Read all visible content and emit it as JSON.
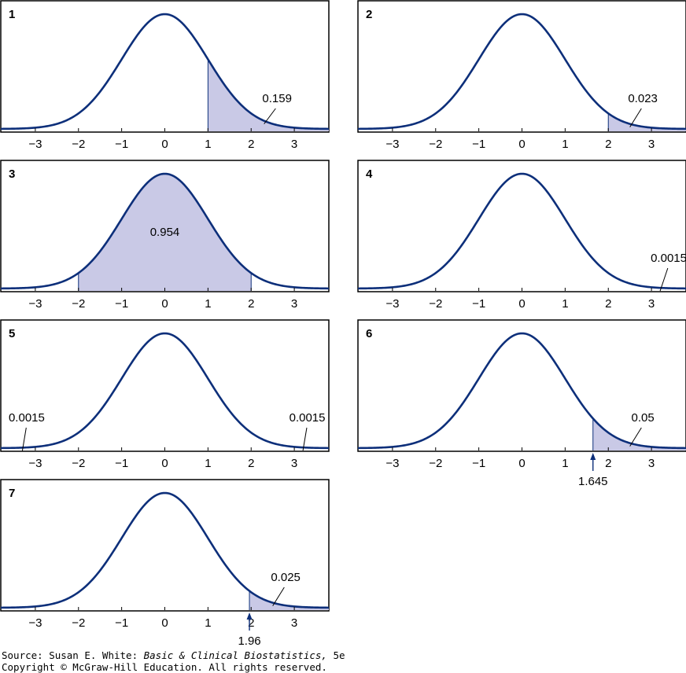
{
  "colors": {
    "curve": "#0d2f7a",
    "fill": "#c9c9e6",
    "axis": "#000000"
  },
  "chart_data": [
    {
      "type": "area",
      "panel_label": "1",
      "xlim": [
        -3.8,
        3.8
      ],
      "x_ticks": [
        -3,
        -2,
        -1,
        0,
        1,
        2,
        3
      ],
      "x_tick_labels": [
        "−3",
        "−2",
        "−1",
        "0",
        "1",
        "2",
        "3"
      ],
      "shaded": [
        {
          "from": 1,
          "to": 3.8
        }
      ],
      "annotations": [
        {
          "text": "0.159",
          "at_x": 2.3,
          "label_x": 2.6
        }
      ]
    },
    {
      "type": "area",
      "panel_label": "2",
      "xlim": [
        -3.8,
        3.8
      ],
      "x_ticks": [
        -3,
        -2,
        -1,
        0,
        1,
        2,
        3
      ],
      "x_tick_labels": [
        "−3",
        "−2",
        "−1",
        "0",
        "1",
        "2",
        "3"
      ],
      "shaded": [
        {
          "from": 2,
          "to": 3.8
        }
      ],
      "annotations": [
        {
          "text": "0.023",
          "at_x": 2.5,
          "label_x": 2.8
        }
      ]
    },
    {
      "type": "area",
      "panel_label": "3",
      "xlim": [
        -3.8,
        3.8
      ],
      "x_ticks": [
        -3,
        -2,
        -1,
        0,
        1,
        2,
        3
      ],
      "x_tick_labels": [
        "−3",
        "−2",
        "−1",
        "0",
        "1",
        "2",
        "3"
      ],
      "shaded": [
        {
          "from": -2,
          "to": 2
        }
      ],
      "annotations": [
        {
          "text": "0.954",
          "inside": true,
          "at_x": 0
        }
      ]
    },
    {
      "type": "area",
      "panel_label": "4",
      "xlim": [
        -3.8,
        3.8
      ],
      "x_ticks": [
        -3,
        -2,
        -1,
        0,
        1,
        2,
        3
      ],
      "x_tick_labels": [
        "−3",
        "−2",
        "−1",
        "0",
        "1",
        "2",
        "3"
      ],
      "shaded": [],
      "annotations": [
        {
          "text": "0.0015",
          "at_x": 3.2,
          "label_x": 3.4
        }
      ]
    },
    {
      "type": "area",
      "panel_label": "5",
      "xlim": [
        -3.8,
        3.8
      ],
      "x_ticks": [
        -3,
        -2,
        -1,
        0,
        1,
        2,
        3
      ],
      "x_tick_labels": [
        "−3",
        "−2",
        "−1",
        "0",
        "1",
        "2",
        "3"
      ],
      "shaded": [],
      "annotations": [
        {
          "text": "0.0015",
          "at_x": -3.3,
          "label_x": -3.2
        },
        {
          "text": "0.0015",
          "at_x": 3.2,
          "label_x": 3.3
        }
      ]
    },
    {
      "type": "area",
      "panel_label": "6",
      "xlim": [
        -3.8,
        3.8
      ],
      "x_ticks": [
        -3,
        -2,
        -1,
        0,
        1,
        2,
        3
      ],
      "x_tick_labels": [
        "−3",
        "−2",
        "−1",
        "0",
        "1",
        "2",
        "3"
      ],
      "shaded": [
        {
          "from": 1.645,
          "to": 3.8
        }
      ],
      "annotations": [
        {
          "text": "0.05",
          "at_x": 2.5,
          "label_x": 2.8
        }
      ],
      "critical_value": {
        "x": 1.645,
        "label": "1.645"
      }
    },
    {
      "type": "area",
      "panel_label": "7",
      "xlim": [
        -3.8,
        3.8
      ],
      "x_ticks": [
        -3,
        -2,
        -1,
        0,
        1,
        2,
        3
      ],
      "x_tick_labels": [
        "−3",
        "−2",
        "−1",
        "0",
        "1",
        "2",
        "3"
      ],
      "shaded": [
        {
          "from": 1.96,
          "to": 3.8
        }
      ],
      "annotations": [
        {
          "text": "0.025",
          "at_x": 2.5,
          "label_x": 2.8
        }
      ],
      "critical_value": {
        "x": 1.96,
        "label": "1.96"
      }
    }
  ],
  "source": {
    "prefix": "Source: Susan E. White: ",
    "book_title": "Basic & Clinical Biostatistics,",
    "edition": " 5e",
    "copyright": "Copyright © McGraw-Hill Education. All rights reserved."
  }
}
